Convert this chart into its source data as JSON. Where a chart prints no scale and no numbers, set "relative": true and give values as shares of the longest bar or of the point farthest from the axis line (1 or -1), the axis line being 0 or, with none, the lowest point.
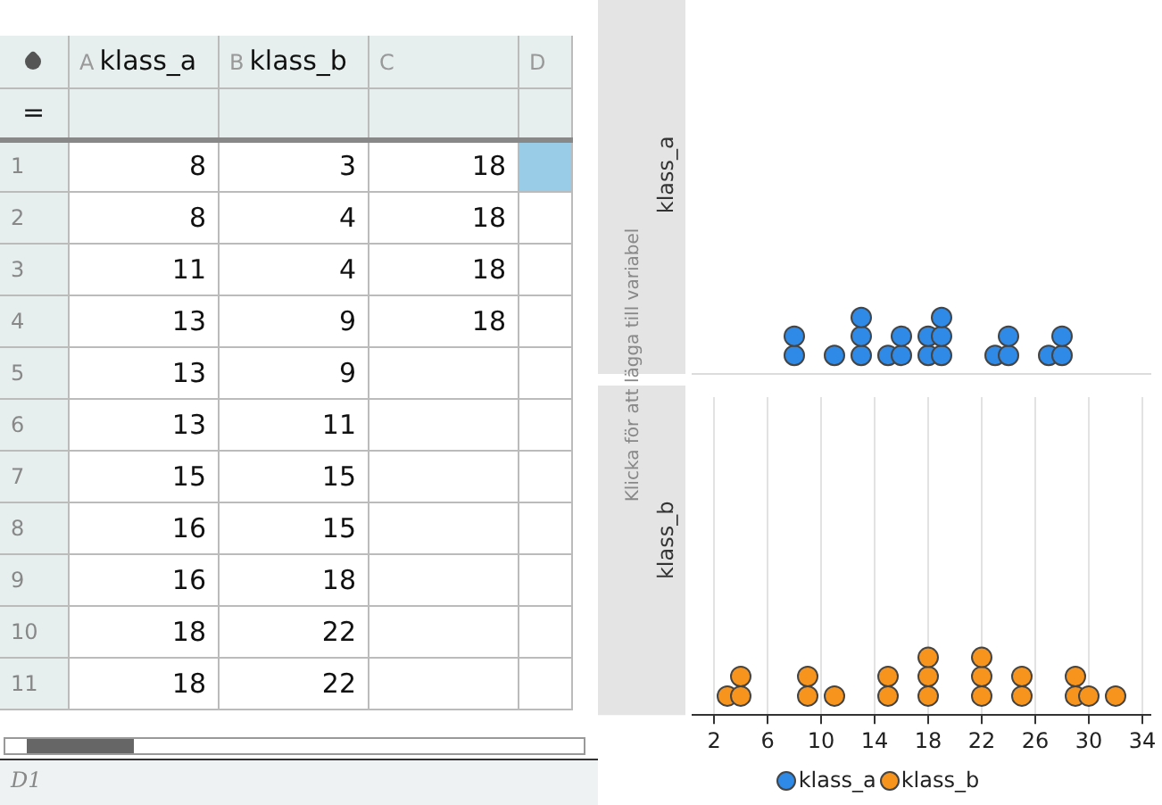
{
  "chart_data": [
    {
      "type": "heatmap",
      "annotations": [
        "A",
        "B",
        "C",
        "D",
        "=",
        "D1"
      ],
      "categories": [
        "klass_a",
        "klass_b",
        null,
        null
      ],
      "y_categories": [
        "1",
        "2",
        "3",
        "4",
        "5",
        "6",
        "7",
        "8",
        "9",
        "10",
        "11"
      ],
      "data_labels": true,
      "cells": [
        [
          8,
          3,
          18,
          null
        ],
        [
          8,
          4,
          18,
          null
        ],
        [
          11,
          4,
          18,
          null
        ],
        [
          13,
          9,
          18,
          null
        ],
        [
          13,
          9,
          null,
          null
        ],
        [
          13,
          11,
          null,
          null
        ],
        [
          15,
          15,
          null,
          null
        ],
        [
          16,
          15,
          null,
          null
        ],
        [
          16,
          18,
          null,
          null
        ],
        [
          18,
          22,
          null,
          null
        ],
        [
          18,
          22,
          null,
          null
        ]
      ]
    },
    {
      "type": "scatter",
      "relative": true,
      "ylabel": "klass_a",
      "xlim": [
        0.4,
        34.6
      ],
      "grid": "x",
      "legend": "bottom",
      "marker": "circle",
      "tick_labels": false,
      "series": [
        {
          "name": "klass_a",
          "color": "#2e8ae6",
          "x": [
            8,
            8,
            11,
            13,
            13,
            13,
            15,
            16,
            16,
            18,
            18,
            19,
            19,
            19,
            23,
            24,
            24,
            27,
            28,
            28
          ],
          "values": [
            0.33,
            0.67,
            0.33,
            0.33,
            0.67,
            1,
            0.33,
            0.33,
            0.67,
            0.33,
            0.67,
            0.33,
            0.67,
            1,
            0.33,
            0.33,
            0.67,
            0.33,
            0.33,
            0.67
          ]
        }
      ]
    },
    {
      "type": "scatter",
      "relative": true,
      "ylabel": "klass_b",
      "annotations": [
        "Klicka för att lägga till variabel"
      ],
      "xlim": [
        0.4,
        34.6
      ],
      "xticks": [
        2,
        6,
        10,
        14,
        18,
        22,
        26,
        30,
        34
      ],
      "grid": "x",
      "legend": "bottom",
      "marker": "circle",
      "tick_labels": "x",
      "series": [
        {
          "name": "klass_b",
          "color": "#f7941d",
          "x": [
            3,
            4,
            4,
            9,
            9,
            11,
            15,
            15,
            18,
            18,
            18,
            22,
            22,
            22,
            25,
            25,
            29,
            29,
            30,
            32
          ],
          "values": [
            0.33,
            0.33,
            0.67,
            0.33,
            0.67,
            0.33,
            0.33,
            0.67,
            0.33,
            0.67,
            1,
            0.33,
            0.67,
            1,
            0.33,
            0.67,
            0.33,
            0.67,
            0.33,
            0.33
          ]
        }
      ]
    }
  ]
}
